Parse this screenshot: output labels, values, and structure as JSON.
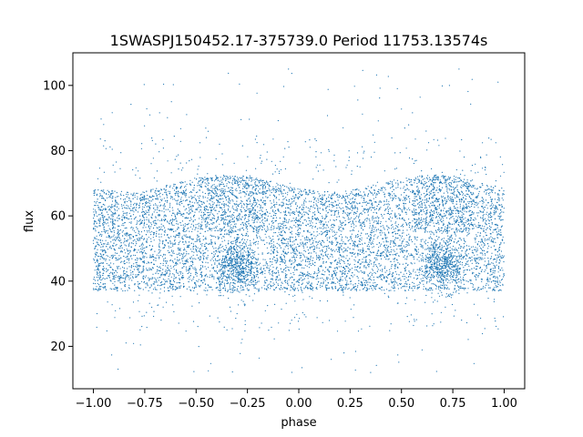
{
  "chart_data": {
    "type": "scatter",
    "title": "1SWASPJ150452.17-375739.0 Period 11753.13574s",
    "xlabel": "phase",
    "ylabel": "flux",
    "xlim": [
      -1.1,
      1.1
    ],
    "ylim": [
      7,
      110
    ],
    "xticks": [
      -1.0,
      -0.75,
      -0.5,
      -0.25,
      0.0,
      0.25,
      0.5,
      0.75,
      1.0
    ],
    "xtick_labels": [
      "−1.00",
      "−0.75",
      "−0.50",
      "−0.25",
      "0.00",
      "0.25",
      "0.50",
      "0.75",
      "1.00"
    ],
    "yticks": [
      20,
      40,
      60,
      80,
      100
    ],
    "ytick_labels": [
      "20",
      "40",
      "60",
      "80",
      "100"
    ],
    "grid": false,
    "legend": "none",
    "point_color": "#1f77b4",
    "series": [
      {
        "phase_range": [
          -1.0,
          1.0
        ],
        "flux_band": [
          37,
          70
        ],
        "dense_region_centers": [
          {
            "phase": -0.3,
            "flux": 45
          },
          {
            "phase": 0.7,
            "flux": 45
          }
        ],
        "outlier_flux_range": [
          12,
          105
        ],
        "sampled_points": [
          {
            "x": -0.95,
            "y": 88
          },
          {
            "x": -0.62,
            "y": 95
          },
          {
            "x": -0.28,
            "y": 21
          },
          {
            "x": -0.05,
            "y": 105
          },
          {
            "x": 0.22,
            "y": 18
          },
          {
            "x": 0.48,
            "y": 99
          },
          {
            "x": 0.78,
            "y": 105
          },
          {
            "x": 0.97,
            "y": 101
          },
          {
            "x": -0.88,
            "y": 13
          },
          {
            "x": 0.35,
            "y": 12
          },
          {
            "x": 0.62,
            "y": 86
          },
          {
            "x": -0.45,
            "y": 84
          }
        ]
      }
    ]
  }
}
